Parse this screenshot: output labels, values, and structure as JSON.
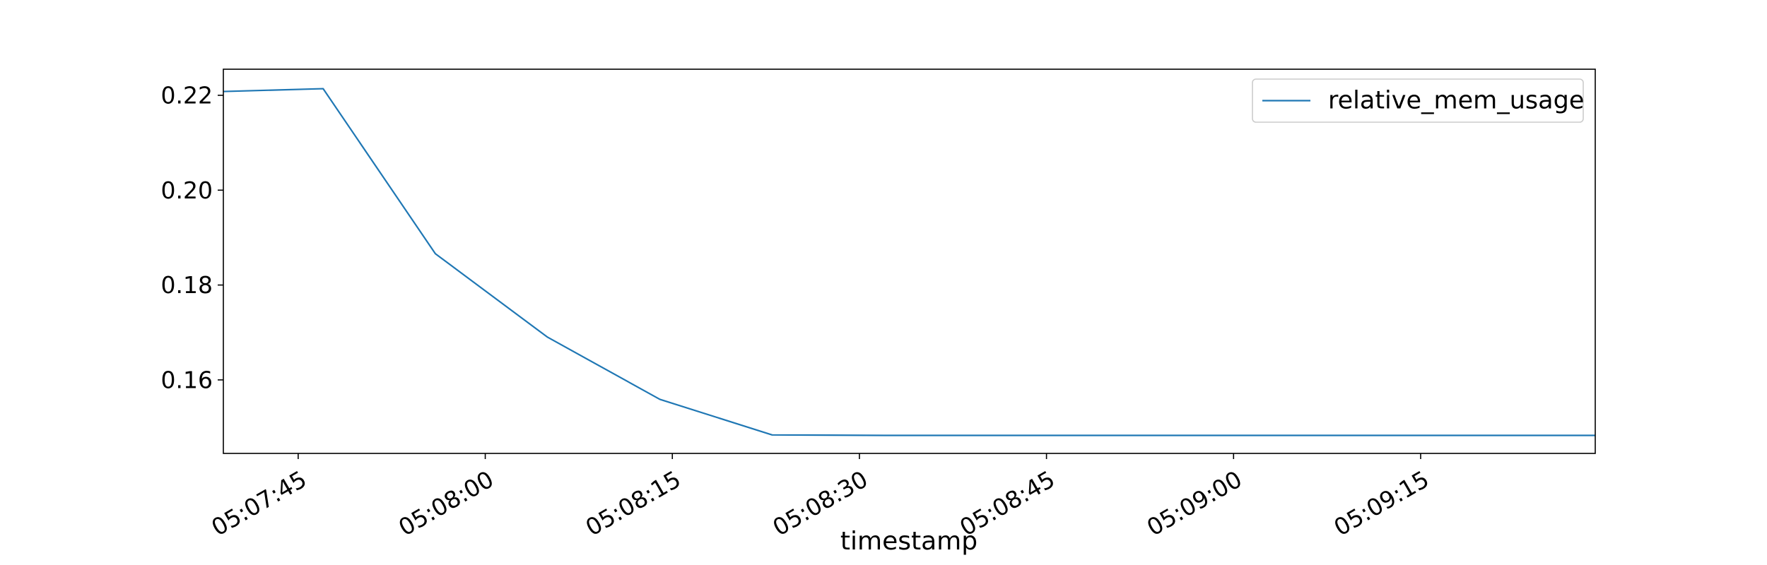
{
  "chart_data": {
    "type": "line",
    "title": "",
    "xlabel": "timestamp",
    "ylabel": "",
    "x_ticks": [
      "05:07:45",
      "05:08:00",
      "05:08:15",
      "05:08:30",
      "05:08:45",
      "05:09:00",
      "05:09:15"
    ],
    "y_ticks": [
      "0.16",
      "0.18",
      "0.20",
      "0.22"
    ],
    "xlim": [
      "05:07:39",
      "05:09:29"
    ],
    "ylim": [
      0.1445,
      0.2255
    ],
    "grid": false,
    "legend_position": "top-right",
    "series": [
      {
        "name": "relative_mem_usage",
        "color": "#1f77b4",
        "x": [
          "05:07:39",
          "05:07:47",
          "05:07:56",
          "05:08:05",
          "05:08:14",
          "05:08:23",
          "05:08:32",
          "05:08:41",
          "05:08:50",
          "05:08:59",
          "05:09:08",
          "05:09:17",
          "05:09:26",
          "05:09:29"
        ],
        "y": [
          0.2208,
          0.2214,
          0.1866,
          0.169,
          0.1559,
          0.1484,
          0.1483,
          0.1483,
          0.1483,
          0.1483,
          0.1483,
          0.1483,
          0.1483,
          0.1483
        ]
      }
    ]
  }
}
